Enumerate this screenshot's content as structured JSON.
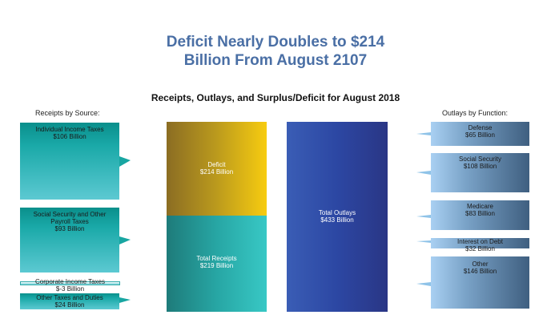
{
  "title_line1": "Deficit Nearly Doubles to $214",
  "title_line2": "Billion From August 2107",
  "subtitle": "Receipts, Outlays, and Surplus/Deficit for August 2018",
  "receipts_header": "Receipts by Source:",
  "outlays_header": "Outlays by Function:",
  "colors": {
    "title": "#4a6fa5",
    "receipts": "#1aa9a8",
    "deficit": "#d4ae16",
    "outlays": "#2c47a3",
    "outlay_items": "#5b7ea3"
  },
  "chart_data": {
    "type": "bar",
    "title": "Receipts, Outlays, and Surplus/Deficit for August 2018",
    "units": "Billion",
    "main_bars": {
      "receipts_total": {
        "label": "Total Receipts",
        "value_text": "$219 Billion",
        "value": 219
      },
      "deficit": {
        "label": "Deficit",
        "value_text": "$214 Billion",
        "value": 214
      },
      "outlays_total": {
        "label": "Total Outlays",
        "value_text": "$433 Billion",
        "value": 433
      }
    },
    "receipts_by_source": [
      {
        "label": "Individual Income Taxes",
        "value_text": "$106 Billion",
        "value": 106
      },
      {
        "label": "Social Security and Other Payroll Taxes",
        "value_text": "$93 Billion",
        "value": 93
      },
      {
        "label": "Corporate Income Taxes",
        "value_text": "$-3 Billion",
        "value": -3
      },
      {
        "label": "Other Taxes and Duties",
        "value_text": "$24 Billion",
        "value": 24
      }
    ],
    "outlays_by_function": [
      {
        "label": "Defense",
        "value_text": "$65 Billion",
        "value": 65
      },
      {
        "label": "Social Security",
        "value_text": "$108 Billion",
        "value": 108
      },
      {
        "label": "Medicare",
        "value_text": "$83 Billion",
        "value": 83
      },
      {
        "label": "Interest on Debt",
        "value_text": "$32 Billion",
        "value": 32
      },
      {
        "label": "Other",
        "value_text": "$146 Billion",
        "value": 146
      }
    ]
  }
}
